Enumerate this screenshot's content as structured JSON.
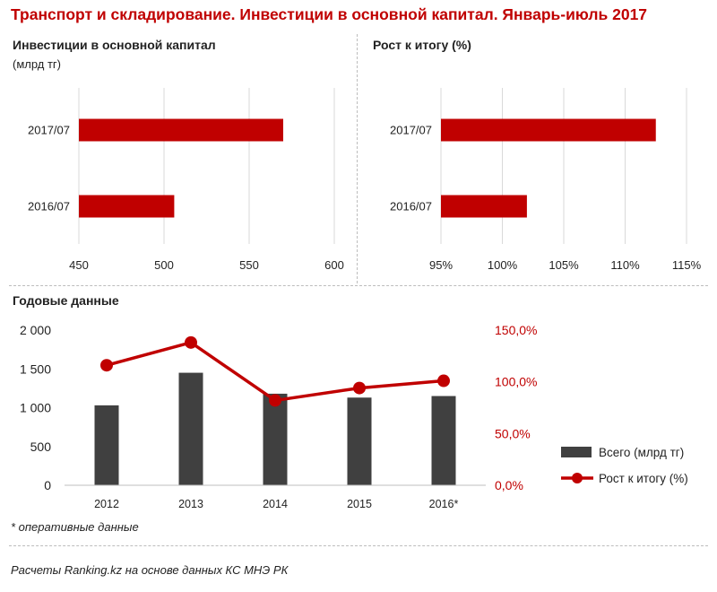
{
  "title": "Транспорт и складирование. Инвестиции в основной капитал. Январь-июль 2017",
  "left_panel": {
    "heading": "Инвестиции  в основной  капитал",
    "unit": "(млрд тг)"
  },
  "right_panel": {
    "heading": "Рост к итогу (%)"
  },
  "annual": {
    "heading": "Годовые данные"
  },
  "footnote": "* оперативные данные",
  "source": "Расчеты Ranking.kz на основе данных КС МНЭ РК",
  "colors": {
    "red": "#c00000",
    "dark": "#404040",
    "grid": "#d9d9d9",
    "text": "#222222"
  },
  "chart_data": [
    {
      "type": "bar",
      "orientation": "horizontal",
      "title": "Инвестиции  в основной  капитал",
      "ylabel": "(млрд тг)",
      "categories": [
        "2017/07",
        "2016/07"
      ],
      "values": [
        570,
        506
      ],
      "xlim": [
        450,
        600
      ],
      "xticks": [
        450,
        500,
        550,
        600
      ],
      "xtick_labels": [
        "450",
        "500",
        "550",
        "600"
      ],
      "grid": true
    },
    {
      "type": "bar",
      "orientation": "horizontal",
      "title": "Рост к итогу (%)",
      "categories": [
        "2017/07",
        "2016/07"
      ],
      "values": [
        112.5,
        102.0
      ],
      "xlim": [
        95,
        115
      ],
      "xticks": [
        95,
        100,
        105,
        110,
        115
      ],
      "xtick_labels": [
        "95%",
        "100%",
        "105%",
        "110%",
        "115%"
      ],
      "grid": true
    },
    {
      "type": "bar",
      "title": "Годовые данные",
      "categories": [
        "2012",
        "2013",
        "2014",
        "2015",
        "2016*"
      ],
      "series": [
        {
          "name": "Всего (млрд тг)",
          "kind": "bar",
          "axis": "left",
          "values": [
            1030,
            1450,
            1180,
            1130,
            1150
          ]
        },
        {
          "name": "Рост к итогу (%)",
          "kind": "line",
          "axis": "right",
          "values": [
            116.0,
            138.0,
            82.0,
            94.0,
            101.0
          ]
        }
      ],
      "ylim": [
        0,
        2000
      ],
      "yticks": [
        0,
        500,
        1000,
        1500,
        2000
      ],
      "ytick_labels": [
        "0",
        "500",
        "1 000",
        "1 500",
        "2 000"
      ],
      "y2lim": [
        0,
        150
      ],
      "y2ticks": [
        0,
        50,
        100,
        150
      ],
      "y2tick_labels": [
        "0,0%",
        "50,0%",
        "100,0%",
        "150,0%"
      ],
      "legend": "right",
      "grid": false
    }
  ]
}
